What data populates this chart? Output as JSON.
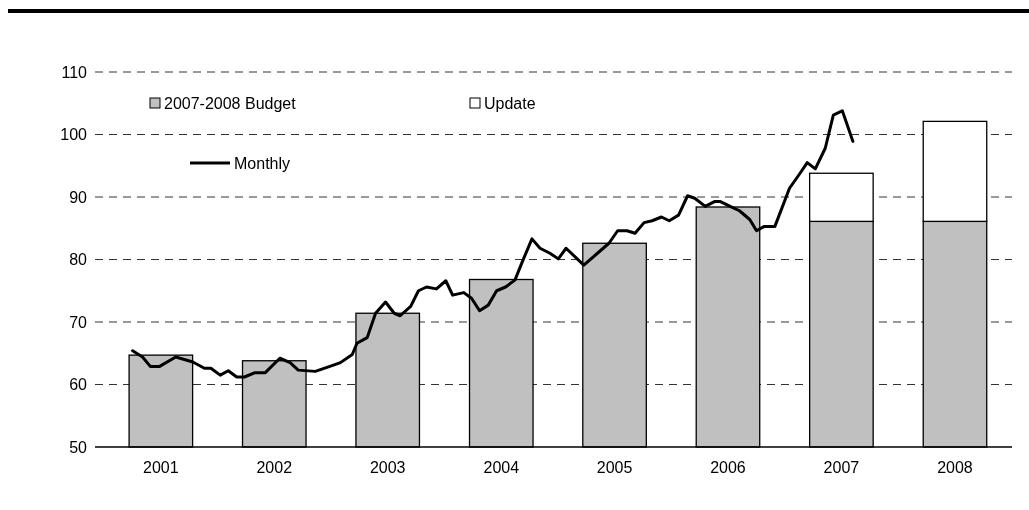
{
  "chart_data": {
    "type": "bar",
    "x": [
      "2001-07",
      "2002-07",
      "2003-07",
      "2004-07",
      "2005-07",
      "2006-07",
      "2007-07",
      "2008-07"
    ],
    "series": [
      {
        "name": "2007-2008 Budget",
        "color": "#c0c0c0",
        "values": [
          64.7,
          63.8,
          71.4,
          76.8,
          82.6,
          88.4,
          86.1,
          86.1
        ]
      },
      {
        "name": "Update",
        "color": "#ffffff",
        "values": [
          null,
          null,
          null,
          null,
          null,
          null,
          7.7,
          16.0
        ],
        "base": [
          null,
          null,
          null,
          null,
          null,
          null,
          86.1,
          86.1
        ]
      },
      {
        "name": "Monthly",
        "type": "line",
        "color": "#000000",
        "line_style": "solid",
        "marker": "none",
        "x": [
          "2001-04-01",
          "2001-05-03",
          "2001-05-28",
          "2001-06-27",
          "2001-08-18",
          "2001-10-12",
          "2001-11-18",
          "2001-12-09",
          "2002-01-08",
          "2002-02-03",
          "2002-03-02",
          "2002-03-27",
          "2002-04-30",
          "2002-06-02",
          "2002-07-19",
          "2002-08-21",
          "2002-09-16",
          "2002-11-10",
          "2002-12-27",
          "2003-01-30",
          "2003-03-09",
          "2003-03-24",
          "2003-04-26",
          "2003-05-23",
          "2003-06-24",
          "2003-07-22",
          "2003-08-10",
          "2003-09-13",
          "2003-10-08",
          "2003-11-03",
          "2003-12-05",
          "2004-01-04",
          "2004-01-26",
          "2004-03-02",
          "2004-03-27",
          "2004-04-22",
          "2004-05-20",
          "2004-06-16",
          "2004-07-15",
          "2004-08-14",
          "2004-09-09",
          "2004-10-08",
          "2004-11-03",
          "2004-12-05",
          "2005-01-01",
          "2005-01-26",
          "2005-03-24",
          "2005-05-07",
          "2005-06-13",
          "2005-07-11",
          "2005-08-10",
          "2005-09-05",
          "2005-10-04",
          "2005-10-30",
          "2005-11-29",
          "2005-12-24",
          "2006-01-23",
          "2006-02-21",
          "2006-03-16",
          "2006-04-19",
          "2006-05-20",
          "2006-06-05",
          "2006-07-08",
          "2006-08-07",
          "2006-09-09",
          "2006-10-01",
          "2006-10-26",
          "2006-11-29",
          "2007-01-15",
          "2007-02-18",
          "2007-03-13",
          "2007-04-08",
          "2007-05-10",
          "2007-06-05",
          "2007-07-04",
          "2007-08-07"
        ],
        "values": [
          65.4,
          64.4,
          62.9,
          62.9,
          64.4,
          63.6,
          62.6,
          62.6,
          61.5,
          62.2,
          61.2,
          61.2,
          61.9,
          61.9,
          64.2,
          63.5,
          62.3,
          62.1,
          62.9,
          63.5,
          64.8,
          66.6,
          67.5,
          71.4,
          73.2,
          71.4,
          71.0,
          72.5,
          75.0,
          75.6,
          75.3,
          76.6,
          74.3,
          74.7,
          73.8,
          71.8,
          72.7,
          75.0,
          75.6,
          76.7,
          79.9,
          83.3,
          81.8,
          81.0,
          80.1,
          81.8,
          79.1,
          81.0,
          82.6,
          84.6,
          84.6,
          84.2,
          85.9,
          86.2,
          86.8,
          86.2,
          87.1,
          90.2,
          89.8,
          88.5,
          89.3,
          89.3,
          88.5,
          87.8,
          86.4,
          84.6,
          85.3,
          85.3,
          91.4,
          93.8,
          95.5,
          94.5,
          97.8,
          103.1,
          103.8,
          98.9
        ]
      }
    ],
    "xlim": [
      "2000-12",
      "2009-01"
    ],
    "xticks": [
      {
        "value": "2001-07",
        "label": "2001"
      },
      {
        "value": "2002-07",
        "label": "2002"
      },
      {
        "value": "2003-07",
        "label": "2003"
      },
      {
        "value": "2004-07",
        "label": "2004"
      },
      {
        "value": "2005-07",
        "label": "2005"
      },
      {
        "value": "2006-07",
        "label": "2006"
      },
      {
        "value": "2007-07",
        "label": "2007"
      },
      {
        "value": "2008-07",
        "label": "2008"
      }
    ],
    "ylim": [
      50,
      110
    ],
    "yticks": [
      50,
      60,
      70,
      80,
      90,
      100,
      110
    ],
    "grid": "y",
    "legend": "top left"
  }
}
